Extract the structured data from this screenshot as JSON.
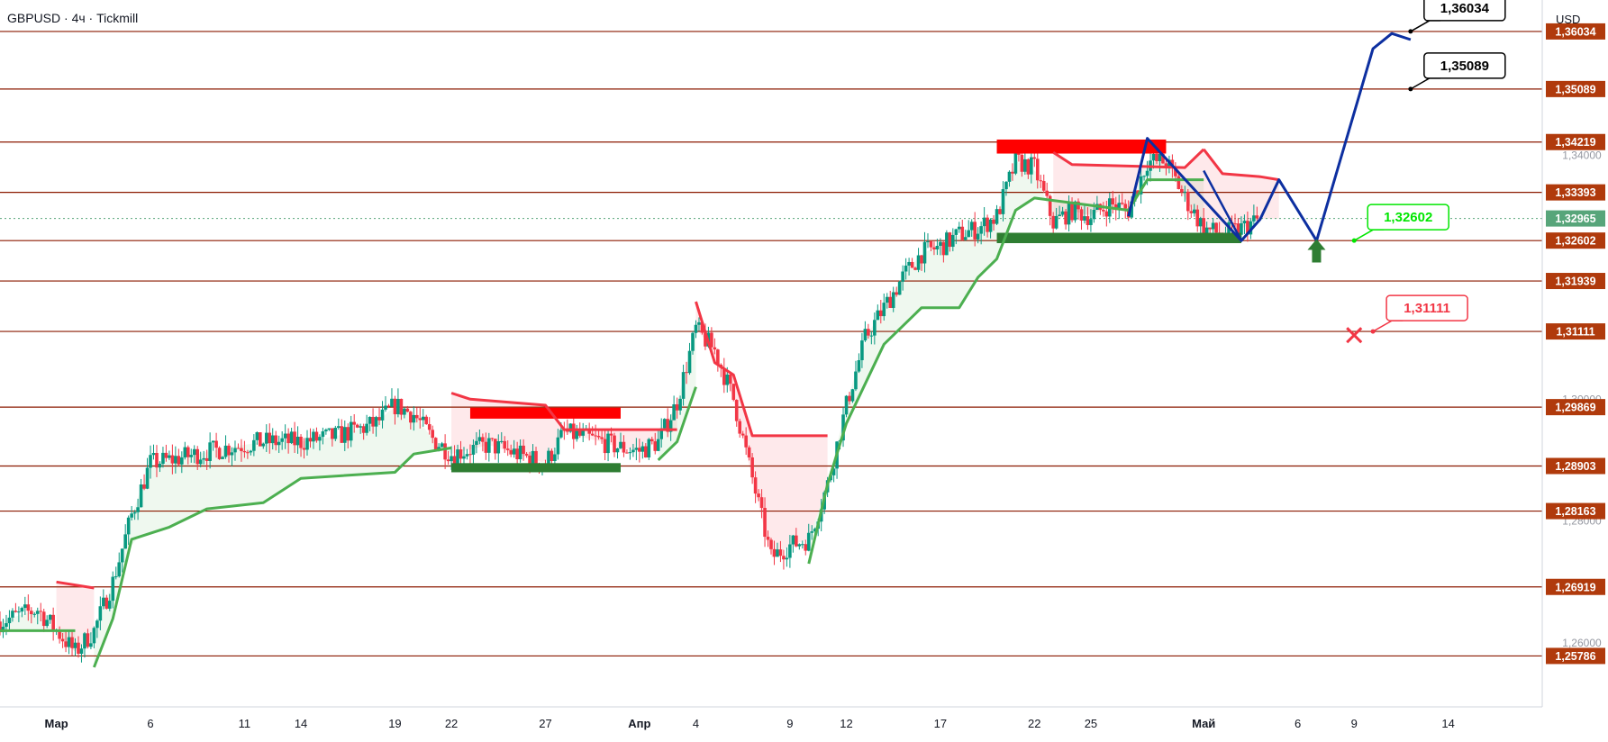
{
  "header": {
    "title": "GBPUSD · 4ч · Tickmill",
    "currency": "USD"
  },
  "colors": {
    "level_line": "#8b1a00",
    "level_label_bg": "#b03a0c",
    "price_label_bg": "#57a57a",
    "supertrend_up": "#4caf50",
    "supertrend_down": "#f23645",
    "candle_up": "#089981",
    "candle_down": "#f23645",
    "forecast": "#0d2fa0",
    "support_zone": "#2e7d32",
    "resistance_zone": "#ff0000",
    "target_box": "#000000",
    "stop_box": "#f23645",
    "entry_box": "#00e600"
  },
  "chart_data": {
    "type": "candlestick",
    "symbol": "GBPUSD",
    "timeframe": "4ч",
    "broker": "Tickmill",
    "y_axis": {
      "range": [
        1.2495,
        1.3655
      ],
      "tick_labels": [
        "1,34000",
        "1,30000",
        "1,28000",
        "1,26000"
      ],
      "ticks": [
        1.34,
        1.3,
        1.28,
        1.26
      ]
    },
    "x_axis": {
      "range_days": [
        "2025-02-26",
        "2025-05-19"
      ],
      "tick_labels": [
        "Мар",
        "6",
        "11",
        "14",
        "19",
        "22",
        "27",
        "Апр",
        "4",
        "9",
        "12",
        "17",
        "22",
        "25",
        "Май",
        "6",
        "9",
        "14"
      ],
      "tick_dates": [
        "2025-03-01",
        "2025-03-06",
        "2025-03-11",
        "2025-03-14",
        "2025-03-19",
        "2025-03-22",
        "2025-03-27",
        "2025-04-01",
        "2025-04-04",
        "2025-04-09",
        "2025-04-12",
        "2025-04-17",
        "2025-04-22",
        "2025-04-25",
        "2025-05-01",
        "2025-05-06",
        "2025-05-09",
        "2025-05-14"
      ]
    },
    "levels": [
      {
        "value": 1.36034,
        "label": "1,36034"
      },
      {
        "value": 1.35089,
        "label": "1,35089"
      },
      {
        "value": 1.34219,
        "label": "1,34219"
      },
      {
        "value": 1.33393,
        "label": "1,33393"
      },
      {
        "value": 1.32602,
        "label": "1,32602"
      },
      {
        "value": 1.31939,
        "label": "1,31939"
      },
      {
        "value": 1.31111,
        "label": "1,31111"
      },
      {
        "value": 1.29869,
        "label": "1,29869"
      },
      {
        "value": 1.28903,
        "label": "1,28903"
      },
      {
        "value": 1.28163,
        "label": "1,28163"
      },
      {
        "value": 1.26919,
        "label": "1,26919"
      },
      {
        "value": 1.25786,
        "label": "1,25786"
      }
    ],
    "last_price": {
      "value": 1.32965,
      "label": "1,32965"
    },
    "close_path": [
      [
        "2025-02-26",
        1.2635
      ],
      [
        "2025-02-28",
        1.2655
      ],
      [
        "2025-03-01",
        1.262
      ],
      [
        "2025-03-02",
        1.2585
      ],
      [
        "2025-03-03",
        1.262
      ],
      [
        "2025-03-04",
        1.27
      ],
      [
        "2025-03-05",
        1.281
      ],
      [
        "2025-03-06",
        1.2895
      ],
      [
        "2025-03-07",
        1.29
      ],
      [
        "2025-03-10",
        1.292
      ],
      [
        "2025-03-12",
        1.293
      ],
      [
        "2025-03-14",
        1.293
      ],
      [
        "2025-03-16",
        1.294
      ],
      [
        "2025-03-18",
        1.296
      ],
      [
        "2025-03-19",
        1.299
      ],
      [
        "2025-03-20",
        1.2975
      ],
      [
        "2025-03-21",
        1.2935
      ],
      [
        "2025-03-22",
        1.291
      ],
      [
        "2025-03-24",
        1.2925
      ],
      [
        "2025-03-26",
        1.2905
      ],
      [
        "2025-03-27",
        1.2895
      ],
      [
        "2025-03-28",
        1.2945
      ],
      [
        "2025-03-30",
        1.293
      ],
      [
        "2025-03-31",
        1.292
      ],
      [
        "2025-04-01",
        1.2915
      ],
      [
        "2025-04-02",
        1.293
      ],
      [
        "2025-04-03",
        1.2995
      ],
      [
        "2025-04-04",
        1.3115
      ],
      [
        "2025-04-05",
        1.308
      ],
      [
        "2025-04-06",
        1.3
      ],
      [
        "2025-04-07",
        1.287
      ],
      [
        "2025-04-08",
        1.274
      ],
      [
        "2025-04-09",
        1.276
      ],
      [
        "2025-04-10",
        1.277
      ],
      [
        "2025-04-11",
        1.286
      ],
      [
        "2025-04-12",
        1.299
      ],
      [
        "2025-04-13",
        1.31
      ],
      [
        "2025-04-14",
        1.315
      ],
      [
        "2025-04-15",
        1.32
      ],
      [
        "2025-04-16",
        1.324
      ],
      [
        "2025-04-17",
        1.325
      ],
      [
        "2025-04-18",
        1.327
      ],
      [
        "2025-04-19",
        1.328
      ],
      [
        "2025-04-20",
        1.33
      ],
      [
        "2025-04-21",
        1.339
      ],
      [
        "2025-04-22",
        1.338
      ],
      [
        "2025-04-23",
        1.329
      ],
      [
        "2025-04-24",
        1.331
      ],
      [
        "2025-04-25",
        1.33
      ],
      [
        "2025-04-26",
        1.332
      ],
      [
        "2025-04-27",
        1.331
      ],
      [
        "2025-04-28",
        1.339
      ],
      [
        "2025-04-29",
        1.339
      ],
      [
        "2025-04-30",
        1.333
      ],
      [
        "2025-05-01",
        1.328
      ],
      [
        "2025-05-02",
        1.327
      ],
      [
        "2025-05-03",
        1.328
      ],
      [
        "2025-05-04",
        1.3296
      ]
    ],
    "supertrend": [
      {
        "trend": "up",
        "points": [
          [
            "2025-02-26",
            1.262
          ],
          [
            "2025-03-02",
            1.262
          ]
        ]
      },
      {
        "trend": "down",
        "points": [
          [
            "2025-03-01",
            1.27
          ],
          [
            "2025-03-03",
            1.269
          ]
        ]
      },
      {
        "trend": "up",
        "points": [
          [
            "2025-03-03",
            1.256
          ],
          [
            "2025-03-04",
            1.264
          ],
          [
            "2025-03-05",
            1.277
          ],
          [
            "2025-03-07",
            1.279
          ],
          [
            "2025-03-09",
            1.282
          ],
          [
            "2025-03-12",
            1.283
          ],
          [
            "2025-03-14",
            1.287
          ],
          [
            "2025-03-19",
            1.288
          ],
          [
            "2025-03-20",
            1.291
          ],
          [
            "2025-03-22",
            1.292
          ]
        ]
      },
      {
        "trend": "down",
        "points": [
          [
            "2025-03-22",
            1.301
          ],
          [
            "2025-03-23",
            1.3
          ],
          [
            "2025-03-27",
            1.299
          ],
          [
            "2025-03-28",
            1.295
          ],
          [
            "2025-04-03",
            1.295
          ]
        ]
      },
      {
        "trend": "up",
        "points": [
          [
            "2025-04-02",
            1.29
          ],
          [
            "2025-04-03",
            1.293
          ],
          [
            "2025-04-04",
            1.302
          ]
        ]
      },
      {
        "trend": "down",
        "points": [
          [
            "2025-04-04",
            1.316
          ],
          [
            "2025-04-05",
            1.306
          ],
          [
            "2025-04-06",
            1.304
          ],
          [
            "2025-04-07",
            1.294
          ],
          [
            "2025-04-11",
            1.294
          ]
        ]
      },
      {
        "trend": "up",
        "points": [
          [
            "2025-04-10",
            1.273
          ],
          [
            "2025-04-11",
            1.286
          ],
          [
            "2025-04-12",
            1.296
          ],
          [
            "2025-04-14",
            1.309
          ],
          [
            "2025-04-16",
            1.315
          ],
          [
            "2025-04-18",
            1.315
          ],
          [
            "2025-04-19",
            1.32
          ],
          [
            "2025-04-20",
            1.323
          ],
          [
            "2025-04-21",
            1.331
          ],
          [
            "2025-04-22",
            1.333
          ],
          [
            "2025-04-27",
            1.331
          ],
          [
            "2025-04-28",
            1.336
          ],
          [
            "2025-05-01",
            1.336
          ]
        ]
      },
      {
        "trend": "down",
        "points": [
          [
            "2025-04-23",
            1.3405
          ],
          [
            "2025-04-24",
            1.3385
          ],
          [
            "2025-04-30",
            1.338
          ],
          [
            "2025-05-01",
            1.341
          ]
        ]
      },
      {
        "trend": "down",
        "points": [
          [
            "2025-05-01",
            1.341
          ],
          [
            "2025-05-02",
            1.337
          ],
          [
            "2025-05-04",
            1.3365
          ],
          [
            "2025-05-05",
            1.336
          ]
        ]
      }
    ],
    "zones": [
      {
        "kind": "resistance",
        "x": [
          "2025-03-23",
          "2025-03-31"
        ],
        "y": [
          1.2968,
          1.2986
        ]
      },
      {
        "kind": "support",
        "x": [
          "2025-03-22",
          "2025-03-31"
        ],
        "y": [
          1.288,
          1.2895
        ]
      },
      {
        "kind": "resistance",
        "x": [
          "2025-04-20",
          "2025-04-29"
        ],
        "y": [
          1.3403,
          1.3426
        ]
      },
      {
        "kind": "support",
        "x": [
          "2025-04-20",
          "2025-05-03"
        ],
        "y": [
          1.3256,
          1.3273
        ]
      }
    ],
    "forecast_path": [
      [
        "2025-04-27",
        1.33
      ],
      [
        "2025-04-28",
        1.3428
      ],
      [
        "2025-05-03",
        1.326
      ],
      [
        "2025-05-04",
        1.3295
      ],
      [
        "2025-05-05",
        1.336
      ],
      [
        "2025-05-07",
        1.326
      ],
      [
        "2025-05-10",
        1.3575
      ],
      [
        "2025-05-11",
        1.36
      ],
      [
        "2025-05-12",
        1.359
      ]
    ],
    "forecast_partial_path": [
      [
        "2025-05-01",
        1.3375
      ],
      [
        "2025-05-03",
        1.326
      ]
    ],
    "annotations": [
      {
        "kind": "target",
        "label": "1,36034",
        "value": 1.36034,
        "date": "2025-05-12"
      },
      {
        "kind": "target",
        "label": "1,35089",
        "value": 1.35089,
        "date": "2025-05-12"
      },
      {
        "kind": "entry",
        "label": "1,32602",
        "value": 1.32602,
        "date": "2025-05-09"
      },
      {
        "kind": "stop",
        "label": "1,31111",
        "value": 1.31111,
        "date": "2025-05-10"
      }
    ],
    "markers": [
      {
        "kind": "buy-arrow",
        "date": "2025-05-07",
        "value": 1.3245
      },
      {
        "kind": "stop-cross",
        "date": "2025-05-09",
        "value": 1.3105
      }
    ]
  }
}
